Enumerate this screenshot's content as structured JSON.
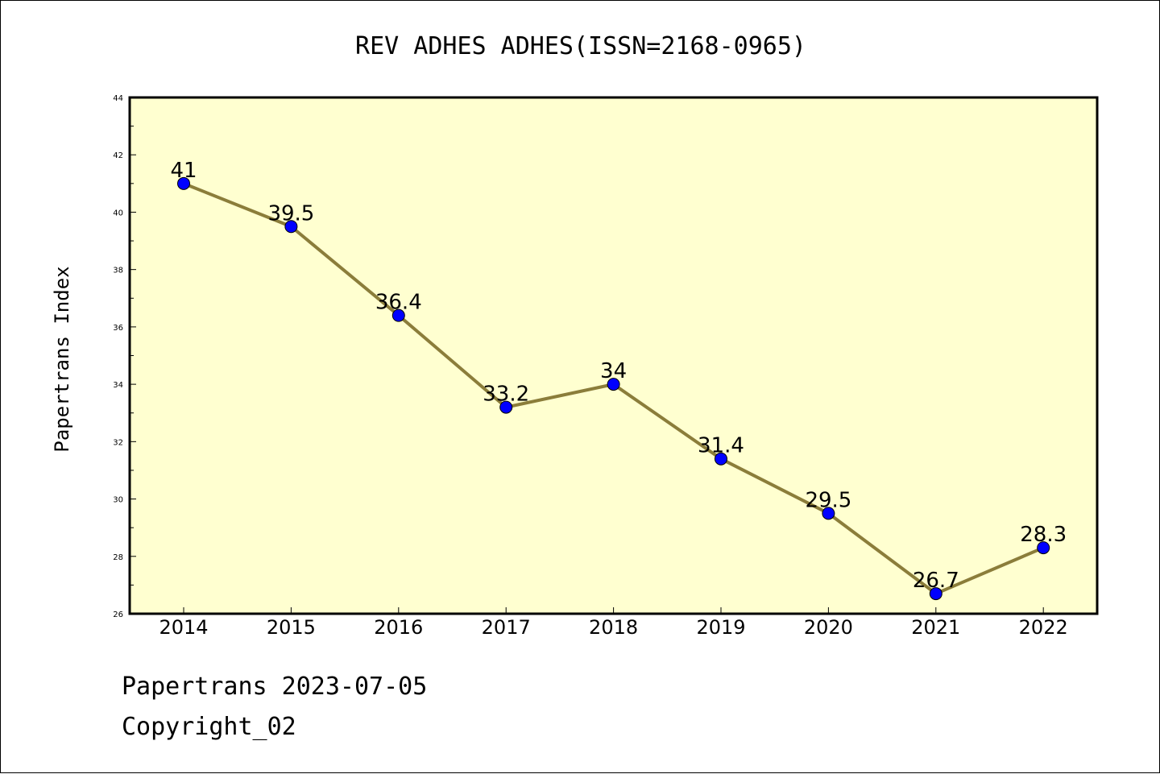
{
  "chart_data": {
    "type": "line",
    "title": "REV ADHES ADHES(ISSN=2168-0965)",
    "xlabel": "",
    "ylabel": "Papertrans Index",
    "categories": [
      "2014",
      "2015",
      "2016",
      "2017",
      "2018",
      "2019",
      "2020",
      "2021",
      "2022"
    ],
    "values": [
      41,
      39.5,
      36.4,
      33.2,
      34,
      31.4,
      29.5,
      26.7,
      28.3
    ],
    "data_labels": [
      "41",
      "39.5",
      "36.4",
      "33.2",
      "34",
      "31.4",
      "29.5",
      "26.7",
      "28.3"
    ],
    "ylim": [
      26,
      44
    ],
    "yticks": [
      26,
      28,
      30,
      32,
      34,
      36,
      38,
      40,
      42,
      44
    ],
    "ytick_labels": [
      "26",
      "28",
      "30",
      "32",
      "34",
      "36",
      "38",
      "40",
      "42",
      "44"
    ],
    "grid": false,
    "legend": "none",
    "colors": {
      "line": "#8b7d3a",
      "marker": "#0000ff",
      "plot_background": "#ffffd0"
    }
  },
  "footer": {
    "line1": "Papertrans 2023-07-05",
    "line2": "Copyright_02"
  }
}
